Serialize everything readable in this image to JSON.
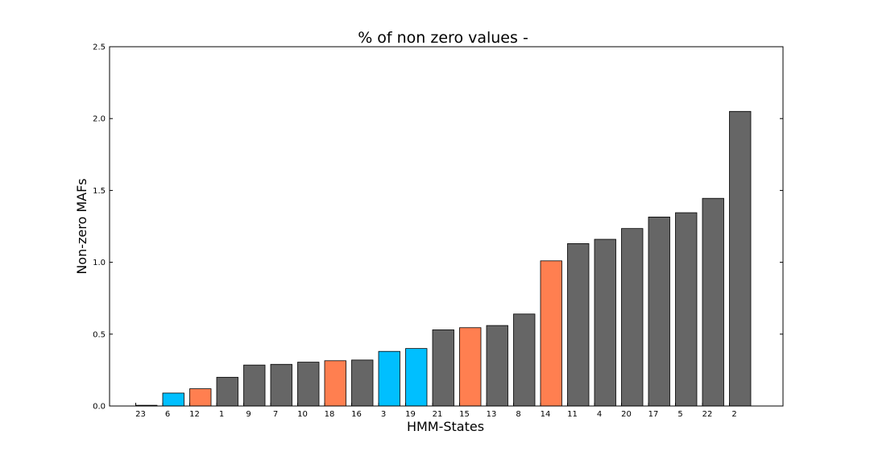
{
  "chart_data": {
    "type": "bar",
    "title": "% of non zero values -",
    "xlabel": "HMM-States",
    "ylabel": "Non-zero MAFs",
    "ylim": [
      0,
      2.5
    ],
    "yticks": [
      "0.0",
      "0.5",
      "1.0",
      "1.5",
      "2.0",
      "2.5"
    ],
    "grid": false,
    "legend": "none",
    "colors": {
      "gray": "#666666",
      "blue": "#00bfff",
      "orange": "#ff7f50"
    },
    "categories": [
      "23",
      "6",
      "12",
      "1",
      "9",
      "7",
      "10",
      "18",
      "16",
      "3",
      "19",
      "21",
      "15",
      "13",
      "8",
      "14",
      "11",
      "4",
      "20",
      "17",
      "5",
      "22",
      "2"
    ],
    "values": [
      0.005,
      0.09,
      0.12,
      0.2,
      0.285,
      0.29,
      0.305,
      0.315,
      0.32,
      0.38,
      0.4,
      0.53,
      0.545,
      0.56,
      0.64,
      1.01,
      1.13,
      1.16,
      1.235,
      1.315,
      1.345,
      1.445,
      2.05
    ],
    "bar_colors": [
      "gray",
      "blue",
      "orange",
      "gray",
      "gray",
      "gray",
      "gray",
      "orange",
      "gray",
      "blue",
      "blue",
      "gray",
      "orange",
      "gray",
      "gray",
      "orange",
      "gray",
      "gray",
      "gray",
      "gray",
      "gray",
      "gray",
      "gray"
    ]
  }
}
